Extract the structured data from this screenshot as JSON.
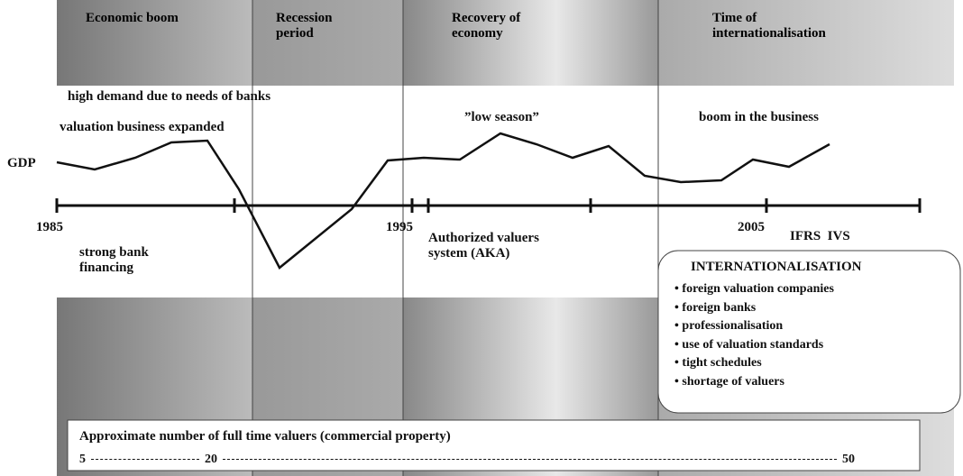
{
  "periods": [
    {
      "title": "Economic boom"
    },
    {
      "title": "Recession period"
    },
    {
      "title": "Recovery of economy"
    },
    {
      "title": "Time of internationalisation"
    }
  ],
  "annotations": {
    "high_demand": "high demand due to needs of banks",
    "valuation_expanded": "valuation business expanded",
    "low_season": "”low season”",
    "boom_business": "boom in the business",
    "gdp": "GDP",
    "strong_bank": "strong bank financing",
    "aka": "Authorized valuers system (AKA)",
    "ifrs_ivs": "IFRS  IVS"
  },
  "timeline": {
    "years": [
      "1985",
      "1995",
      "2005"
    ]
  },
  "internationalisation": {
    "title": "INTERNATIONALISATION",
    "items": [
      "foreign valuation companies",
      "foreign banks",
      "professionalisation",
      "use of valuation standards",
      "tight schedules",
      "shortage of valuers"
    ]
  },
  "valuers": {
    "title": "Approximate number of full time valuers (commercial property)",
    "scale": [
      "5",
      "20",
      "50"
    ]
  }
}
